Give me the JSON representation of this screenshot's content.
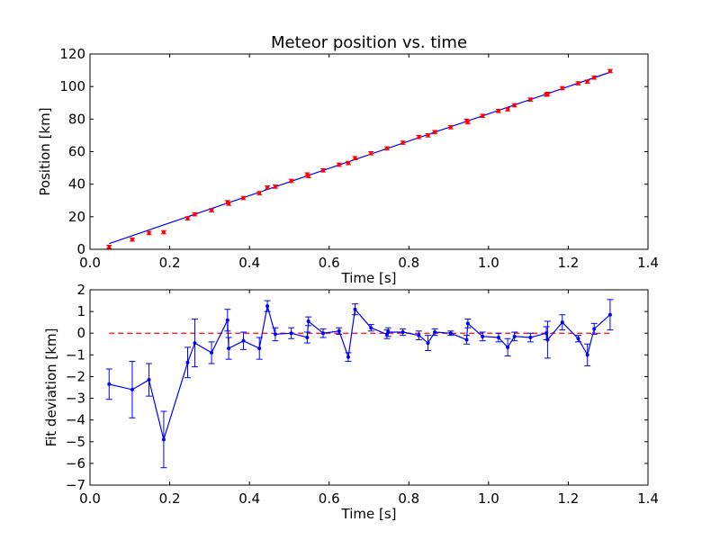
{
  "chart_data": [
    {
      "type": "scatter",
      "title": "Meteor position vs. time",
      "xlabel": "Time [s]",
      "ylabel": "Position [km]",
      "xlim": [
        0.0,
        1.4
      ],
      "ylim": [
        0,
        120
      ],
      "xticks": [
        "0.0",
        "0.2",
        "0.4",
        "0.6",
        "0.8",
        "1.0",
        "1.2",
        "1.4"
      ],
      "yticks": [
        "0",
        "20",
        "40",
        "60",
        "80",
        "100",
        "120"
      ],
      "grid": false,
      "fit_color": "#0000ff",
      "data_color": "#ff0000",
      "series": [
        {
          "kind": "points_with_errorbars",
          "x": [
            0.048,
            0.106,
            0.148,
            0.185,
            0.245,
            0.263,
            0.305,
            0.345,
            0.348,
            0.385,
            0.425,
            0.445,
            0.465,
            0.505,
            0.545,
            0.548,
            0.585,
            0.625,
            0.648,
            0.665,
            0.705,
            0.745,
            0.785,
            0.825,
            0.848,
            0.865,
            0.905,
            0.945,
            0.948,
            0.985,
            1.025,
            1.048,
            1.065,
            1.105,
            1.145,
            1.148,
            1.185,
            1.225,
            1.248,
            1.265,
            1.305
          ],
          "y": [
            1.5,
            6.0,
            10.0,
            10.5,
            19.0,
            21.5,
            24.0,
            29.0,
            28.0,
            31.5,
            34.5,
            38.0,
            38.5,
            42.0,
            46.0,
            45.0,
            48.5,
            52.0,
            53.0,
            56.0,
            59.0,
            62.0,
            65.5,
            69.0,
            70.0,
            72.0,
            75.0,
            79.0,
            78.0,
            82.0,
            85.0,
            86.0,
            88.5,
            92.0,
            95.0,
            95.5,
            99.0,
            102.0,
            103.0,
            105.5,
            109.5
          ],
          "err": [
            1,
            1,
            1,
            1,
            1,
            1,
            1,
            1,
            1,
            1,
            1,
            1,
            1,
            1,
            1,
            1,
            1,
            1,
            1,
            1,
            1,
            1,
            1,
            1,
            1,
            1,
            1,
            1,
            1,
            1,
            1,
            1,
            1,
            1,
            1,
            1,
            1,
            1,
            1,
            1,
            1
          ]
        },
        {
          "kind": "fit_line",
          "x": [
            0.048,
            1.305
          ],
          "y": [
            3.5,
            108.8
          ]
        }
      ]
    },
    {
      "type": "line",
      "xlabel": "Time [s]",
      "ylabel": "Fit deviation [km]",
      "xlim": [
        0.0,
        1.4
      ],
      "ylim": [
        -7,
        2
      ],
      "xticks": [
        "0.0",
        "0.2",
        "0.4",
        "0.6",
        "0.8",
        "1.0",
        "1.2",
        "1.4"
      ],
      "yticks": [
        "2",
        "1",
        "0",
        "−1",
        "−2",
        "−3",
        "−4",
        "−5",
        "−6",
        "−7"
      ],
      "grid": false,
      "line_color": "#0000ff",
      "reference_color": "#ff0000",
      "reference_y": 0,
      "series": [
        {
          "kind": "line_with_errorbars",
          "x": [
            0.048,
            0.106,
            0.148,
            0.185,
            0.245,
            0.263,
            0.305,
            0.345,
            0.348,
            0.385,
            0.425,
            0.445,
            0.465,
            0.505,
            0.545,
            0.548,
            0.585,
            0.625,
            0.648,
            0.665,
            0.705,
            0.745,
            0.748,
            0.785,
            0.825,
            0.848,
            0.865,
            0.905,
            0.945,
            0.948,
            0.985,
            1.025,
            1.048,
            1.065,
            1.105,
            1.145,
            1.148,
            1.185,
            1.225,
            1.248,
            1.265,
            1.305
          ],
          "y": [
            -2.35,
            -2.6,
            -2.15,
            -4.9,
            -1.35,
            -0.45,
            -0.9,
            0.6,
            -0.7,
            -0.35,
            -0.7,
            1.25,
            -0.05,
            0.0,
            -0.2,
            0.55,
            0.0,
            0.1,
            -1.1,
            1.1,
            0.25,
            -0.05,
            0.05,
            0.05,
            -0.1,
            -0.45,
            0.05,
            0.0,
            -0.3,
            0.45,
            -0.15,
            -0.2,
            -0.65,
            -0.15,
            -0.2,
            0.0,
            -0.3,
            0.5,
            -0.25,
            -1.0,
            0.2,
            0.85
          ],
          "err": [
            0.7,
            1.3,
            0.75,
            1.3,
            0.7,
            1.1,
            0.5,
            0.5,
            0.5,
            0.4,
            0.5,
            0.25,
            0.3,
            0.25,
            0.25,
            0.2,
            0.2,
            0.15,
            0.2,
            0.25,
            0.15,
            0.2,
            0.2,
            0.15,
            0.2,
            0.35,
            0.15,
            0.1,
            0.2,
            0.2,
            0.2,
            0.2,
            0.4,
            0.2,
            0.2,
            0.3,
            0.85,
            0.35,
            0.15,
            0.5,
            0.25,
            0.7
          ]
        }
      ]
    }
  ]
}
